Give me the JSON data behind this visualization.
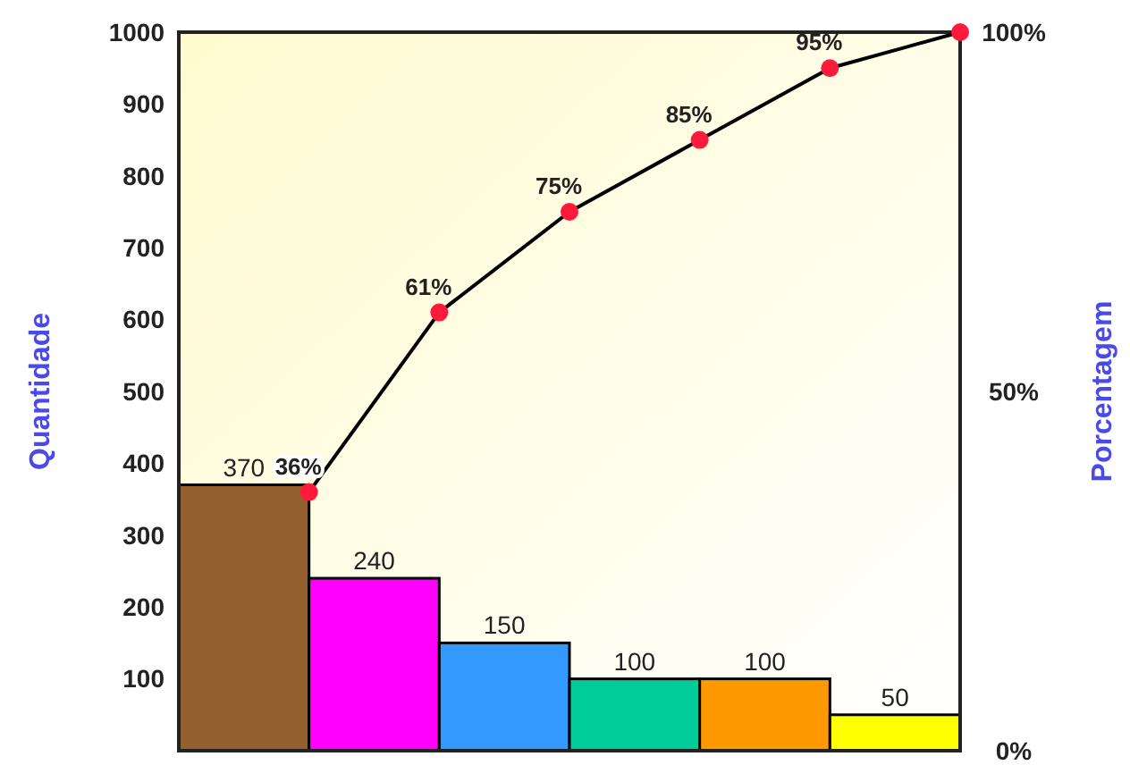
{
  "chart_data": [
    {
      "type": "bar",
      "ylabel": "Quantidade",
      "categories": [
        null,
        null,
        null,
        null,
        null,
        null
      ],
      "values": [
        370,
        240,
        150,
        100,
        100,
        50
      ],
      "colors": [
        "#94602f",
        "#ff00ff",
        "#3399ff",
        "#00cc99",
        "#ff9900",
        "#ffff00"
      ],
      "data_labels": true,
      "ylim": [
        0,
        1000
      ],
      "yticks": [
        100,
        200,
        300,
        400,
        500,
        600,
        700,
        800,
        900,
        1000
      ]
    },
    {
      "type": "line",
      "ylabel": "Porcentagem",
      "categories": [
        null,
        null,
        null,
        null,
        null,
        null
      ],
      "ylim": [
        0,
        100
      ],
      "yticks": [
        {
          "value": 0,
          "label": "0%"
        },
        {
          "value": 50,
          "label": "50%"
        },
        {
          "value": 100,
          "label": "100%"
        }
      ],
      "marker": "circle",
      "series": [
        {
          "color": "#000000",
          "values": [
            36,
            61,
            75,
            85,
            95,
            100
          ],
          "value_labels": [
            "36%",
            "61%",
            "75%",
            "85%",
            "95%",
            null
          ]
        }
      ]
    }
  ]
}
